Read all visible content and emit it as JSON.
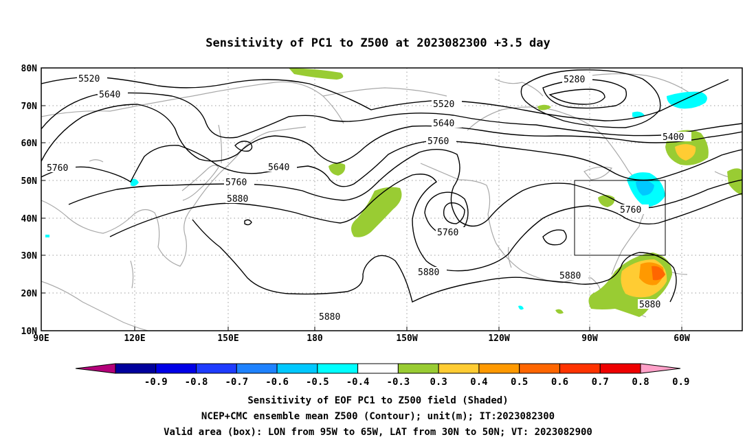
{
  "title": "Sensitivity of PC1 to Z500 at 2023082300 +3.5 day",
  "lat_ticks": [
    "80N",
    "70N",
    "60N",
    "50N",
    "40N",
    "30N",
    "20N",
    "10N"
  ],
  "lon_ticks": [
    "90E",
    "120E",
    "150E",
    "180",
    "150W",
    "120W",
    "90W",
    "60W"
  ],
  "contour_labels": [
    "5520",
    "5640",
    "5760",
    "5640",
    "5760",
    "5880",
    "5520",
    "5640",
    "5760",
    "5280",
    "5400",
    "5760",
    "5760",
    "5880",
    "5880",
    "5880",
    "5880"
  ],
  "colorbar": {
    "labels": [
      "-0.9",
      "-0.8",
      "-0.7",
      "-0.6",
      "-0.5",
      "-0.4",
      "-0.3",
      "0.3",
      "0.4",
      "0.5",
      "0.6",
      "0.7",
      "0.8",
      "0.9"
    ],
    "colors": [
      "#b4007a",
      "#00009c",
      "#0000e6",
      "#1e3cff",
      "#1e82ff",
      "#00c8ff",
      "#00ffff",
      "#ffffff",
      "#99cc33",
      "#ffcc33",
      "#ff9900",
      "#ff6600",
      "#ff3300",
      "#ee0000",
      "#ffa0c8"
    ]
  },
  "footer": {
    "line1": "Sensitivity of EOF PC1 to Z500 field (Shaded)",
    "line2": "NCEP+CMC ensemble mean Z500 (Contour); unit(m); IT:2023082300",
    "line3": "Valid area (box): LON from 95W to 65W, LAT from 30N to 50N; VT: 2023082900"
  }
}
